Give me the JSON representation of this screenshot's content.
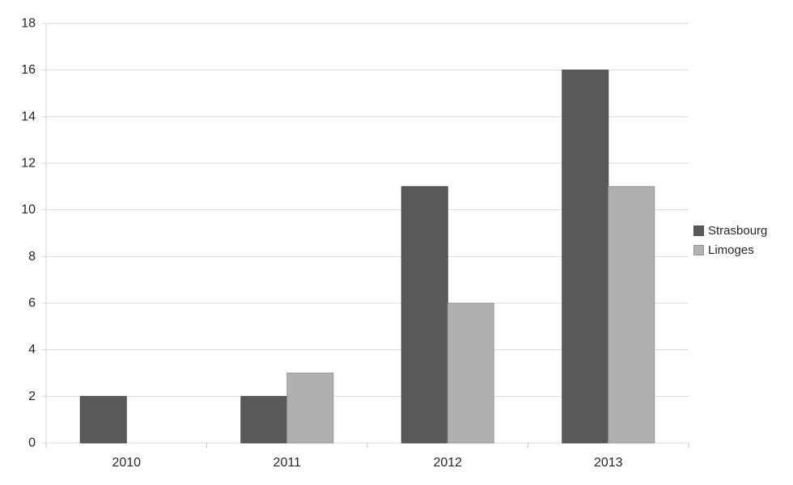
{
  "chart_data": {
    "type": "bar",
    "title": "",
    "categories": [
      "2010",
      "2011",
      "2012",
      "2013"
    ],
    "series": [
      {
        "name": "Strasbourg",
        "values": [
          2,
          2,
          11,
          16
        ],
        "color": "#595959",
        "border_color": "#4d4d4d"
      },
      {
        "name": "Limoges",
        "values": [
          0,
          3,
          6,
          11
        ],
        "color": "#b0b0b0",
        "border_color": "#969696"
      }
    ],
    "ylim": [
      0,
      18
    ],
    "ytick_step": 2,
    "ytick_labels": [
      "0",
      "2",
      "4",
      "6",
      "8",
      "10",
      "12",
      "14",
      "16",
      "18"
    ],
    "xlabel": "",
    "ylabel": "",
    "grid": "horizontal",
    "legend_position": "right",
    "colors": {
      "gridline": "#d9d9d9",
      "axis_line": "#d3d3d3",
      "tick": "#c6c6c6",
      "axis_text": "#262626",
      "background": "#ffffff"
    }
  }
}
